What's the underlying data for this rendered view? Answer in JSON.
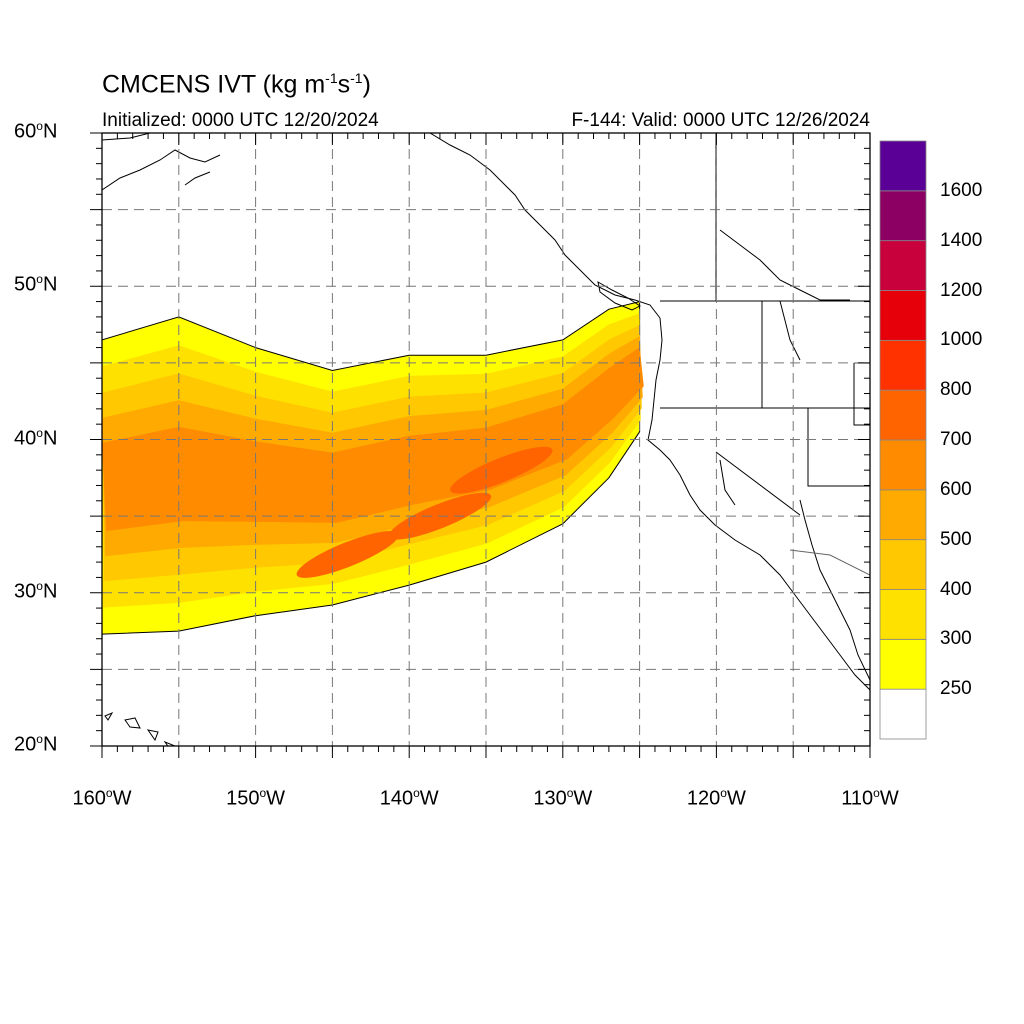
{
  "title": {
    "main": "CMCENS IVT (kg m",
    "exp1": "-1",
    "mid": "s",
    "exp2": "-1",
    "close": ")"
  },
  "initialized": "Initialized: 0000 UTC 12/20/2024",
  "valid": "F-144: Valid: 0000 UTC 12/26/2024",
  "map": {
    "projection": "cylindrical-equidistant",
    "lon_range": [
      -160,
      -110
    ],
    "lat_range": [
      20,
      60
    ],
    "lat_labels": [
      {
        "lat": 60,
        "text": "60",
        "deg": "o",
        "hemi": "N"
      },
      {
        "lat": 50,
        "text": "50",
        "deg": "o",
        "hemi": "N"
      },
      {
        "lat": 40,
        "text": "40",
        "deg": "o",
        "hemi": "N"
      },
      {
        "lat": 30,
        "text": "30",
        "deg": "o",
        "hemi": "N"
      },
      {
        "lat": 20,
        "text": "20",
        "deg": "o",
        "hemi": "N"
      }
    ],
    "lon_labels": [
      {
        "lon": -160,
        "text": "160",
        "deg": "o",
        "hemi": "W"
      },
      {
        "lon": -150,
        "text": "150",
        "deg": "o",
        "hemi": "W"
      },
      {
        "lon": -140,
        "text": "140",
        "deg": "o",
        "hemi": "W"
      },
      {
        "lon": -130,
        "text": "130",
        "deg": "o",
        "hemi": "W"
      },
      {
        "lon": -120,
        "text": "120",
        "deg": "o",
        "hemi": "W"
      },
      {
        "lon": -110,
        "text": "110",
        "deg": "o",
        "hemi": "W"
      }
    ],
    "grid": true
  },
  "colorbar": {
    "colors": [
      "#ffffff",
      "#ffff00",
      "#ffe100",
      "#ffc800",
      "#ffaa00",
      "#ff8c00",
      "#ff6400",
      "#ff3200",
      "#e6000a",
      "#c8003c",
      "#8c0064",
      "#5a0096"
    ],
    "labels": [
      "250",
      "300",
      "400",
      "500",
      "600",
      "700",
      "800",
      "1000",
      "1200",
      "1400",
      "1600"
    ]
  },
  "chart_data": {
    "type": "heatmap",
    "variable": "IVT",
    "levels": [
      250,
      300,
      400,
      500,
      600,
      700,
      800,
      1000,
      1200,
      1400,
      1600
    ],
    "plume_lon": [
      -160,
      -155,
      -150,
      -145,
      -140,
      -135,
      -130,
      -127,
      -125
    ],
    "plume_north_lat": [
      46.5,
      48,
      46,
      44.5,
      45.5,
      45.5,
      46.5,
      48.5,
      49
    ],
    "plume_south_lat": [
      27.3,
      27.5,
      28.5,
      29.2,
      30.5,
      32,
      34.5,
      37.5,
      40.5
    ],
    "max_core": [
      {
        "lon": -144,
        "lat": 32.5,
        "level": 700
      },
      {
        "lon": -138,
        "lat": 35,
        "level": 700
      },
      {
        "lon": -134,
        "lat": 38,
        "level": 700
      }
    ]
  }
}
